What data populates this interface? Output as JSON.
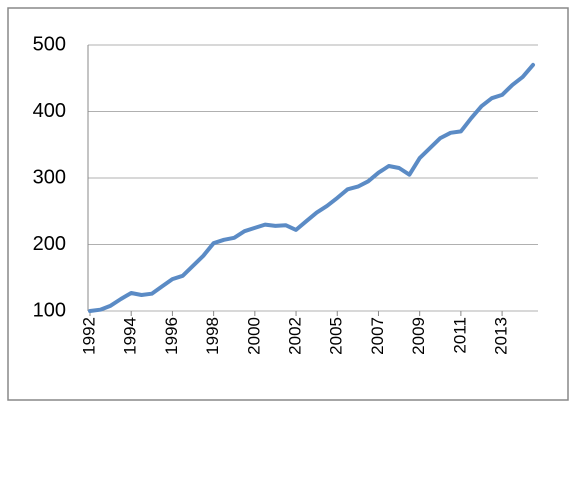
{
  "chart_data": {
    "type": "line",
    "categories": [
      "1992",
      null,
      null,
      null,
      "1994",
      null,
      null,
      null,
      "1996",
      null,
      null,
      null,
      "1998",
      null,
      null,
      null,
      "2000",
      null,
      null,
      null,
      "2002",
      null,
      null,
      null,
      "2005",
      null,
      null,
      null,
      "2007",
      null,
      null,
      null,
      "2009",
      null,
      null,
      null,
      "2011",
      null,
      null,
      null,
      "2013",
      null,
      null,
      null
    ],
    "values": [
      100,
      102,
      108,
      118,
      127,
      124,
      126,
      137,
      148,
      153,
      168,
      183,
      202,
      207,
      210,
      220,
      225,
      230,
      228,
      229,
      222,
      235,
      248,
      258,
      270,
      283,
      287,
      295,
      308,
      318,
      315,
      305,
      330,
      345,
      360,
      368,
      370,
      390,
      408,
      420,
      425,
      440,
      452,
      470
    ],
    "color": "#5b8bc5",
    "ylim": [
      100,
      500
    ],
    "yticks": [
      100,
      200,
      300,
      400,
      500
    ],
    "grid": true
  }
}
